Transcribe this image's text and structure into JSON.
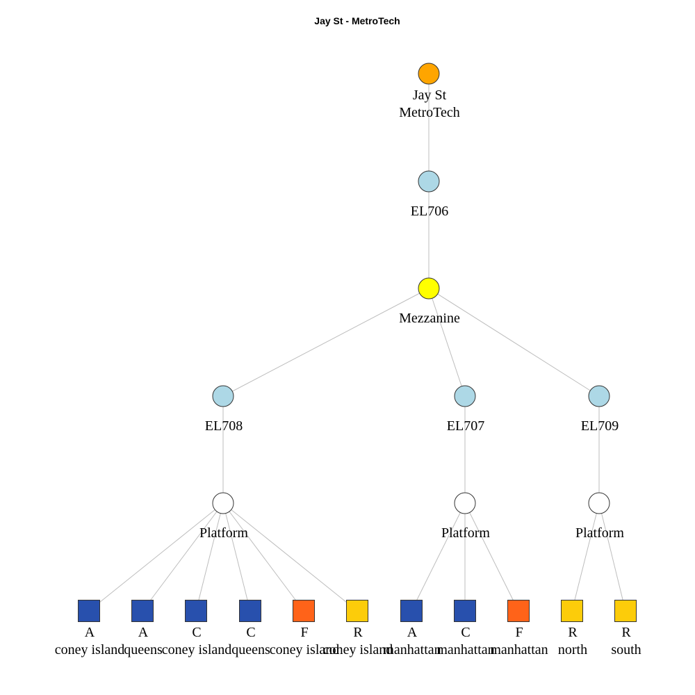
{
  "title": "Jay St - MetroTech",
  "colors": {
    "station": "#FFA500",
    "elevator": "#ADD8E6",
    "mezzanine": "#FFFF00",
    "platform": "#FFFFFF",
    "line_ac": "#2850AD",
    "line_f": "#FF6319",
    "line_r": "#FCCC0A"
  },
  "nodes": [
    {
      "id": "station",
      "shape": "circle",
      "color_key": "station",
      "label": [
        "Jay St",
        "MetroTech"
      ]
    },
    {
      "id": "el706",
      "shape": "circle",
      "color_key": "elevator",
      "label": [
        "EL706"
      ]
    },
    {
      "id": "mezzanine",
      "shape": "circle",
      "color_key": "mezzanine",
      "label": [
        "Mezzanine"
      ]
    },
    {
      "id": "el708",
      "shape": "circle",
      "color_key": "elevator",
      "label": [
        "EL708"
      ]
    },
    {
      "id": "el707",
      "shape": "circle",
      "color_key": "elevator",
      "label": [
        "EL707"
      ]
    },
    {
      "id": "el709",
      "shape": "circle",
      "color_key": "elevator",
      "label": [
        "EL709"
      ]
    },
    {
      "id": "platform1",
      "shape": "circle",
      "color_key": "platform",
      "label": [
        "Platform"
      ]
    },
    {
      "id": "platform2",
      "shape": "circle",
      "color_key": "platform",
      "label": [
        "Platform"
      ]
    },
    {
      "id": "platform3",
      "shape": "circle",
      "color_key": "platform",
      "label": [
        "Platform"
      ]
    },
    {
      "id": "a_coney",
      "shape": "square",
      "color_key": "line_ac",
      "label": [
        "A",
        "coney island"
      ]
    },
    {
      "id": "a_queens",
      "shape": "square",
      "color_key": "line_ac",
      "label": [
        "A",
        "queens"
      ]
    },
    {
      "id": "c_coney",
      "shape": "square",
      "color_key": "line_ac",
      "label": [
        "C",
        "coney island"
      ]
    },
    {
      "id": "c_queens",
      "shape": "square",
      "color_key": "line_ac",
      "label": [
        "C",
        "queens"
      ]
    },
    {
      "id": "f_coney",
      "shape": "square",
      "color_key": "line_f",
      "label": [
        "F",
        "coney island"
      ]
    },
    {
      "id": "r_coney",
      "shape": "square",
      "color_key": "line_r",
      "label": [
        "R",
        "coney island"
      ]
    },
    {
      "id": "a_manhattan",
      "shape": "square",
      "color_key": "line_ac",
      "label": [
        "A",
        "manhattan"
      ]
    },
    {
      "id": "c_manhattan",
      "shape": "square",
      "color_key": "line_ac",
      "label": [
        "C",
        "manhattan"
      ]
    },
    {
      "id": "f_manhattan",
      "shape": "square",
      "color_key": "line_f",
      "label": [
        "F",
        "manhattan"
      ]
    },
    {
      "id": "r_north",
      "shape": "square",
      "color_key": "line_r",
      "label": [
        "R",
        "north"
      ]
    },
    {
      "id": "r_south",
      "shape": "square",
      "color_key": "line_r",
      "label": [
        "R",
        "south"
      ]
    }
  ],
  "edges": [
    [
      "station",
      "el706"
    ],
    [
      "el706",
      "mezzanine"
    ],
    [
      "mezzanine",
      "el708"
    ],
    [
      "mezzanine",
      "el707"
    ],
    [
      "mezzanine",
      "el709"
    ],
    [
      "el708",
      "platform1"
    ],
    [
      "el707",
      "platform2"
    ],
    [
      "el709",
      "platform3"
    ],
    [
      "platform1",
      "a_coney"
    ],
    [
      "platform1",
      "a_queens"
    ],
    [
      "platform1",
      "c_coney"
    ],
    [
      "platform1",
      "c_queens"
    ],
    [
      "platform1",
      "f_coney"
    ],
    [
      "platform1",
      "r_coney"
    ],
    [
      "platform2",
      "a_manhattan"
    ],
    [
      "platform2",
      "c_manhattan"
    ],
    [
      "platform2",
      "f_manhattan"
    ],
    [
      "platform3",
      "r_north"
    ],
    [
      "platform3",
      "r_south"
    ]
  ]
}
